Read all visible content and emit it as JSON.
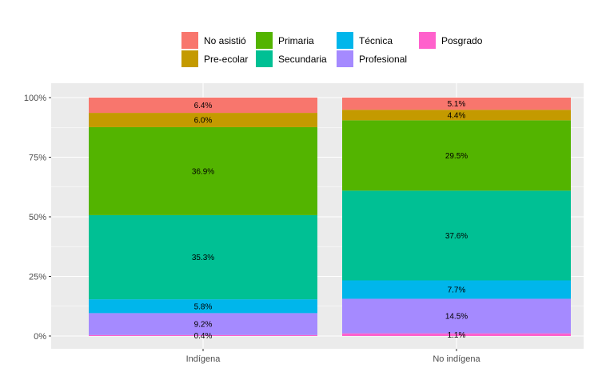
{
  "chart_data": {
    "type": "bar",
    "stacked": true,
    "percent": true,
    "categories": [
      "Indígena",
      "No indígena"
    ],
    "yticks": [
      "0%",
      "25%",
      "50%",
      "75%",
      "100%"
    ],
    "ylim": [
      0,
      100
    ],
    "grid": true,
    "legend_position": "top",
    "series": [
      {
        "name": "Posgrado",
        "color": "#FF61CC",
        "values": [
          0.4,
          1.1
        ],
        "labels": [
          "0.4%",
          "1.1%"
        ]
      },
      {
        "name": "Profesional",
        "color": "#A58AFF",
        "values": [
          9.2,
          14.5
        ],
        "labels": [
          "9.2%",
          "14.5%"
        ]
      },
      {
        "name": "Técnica",
        "color": "#00B6EB",
        "values": [
          5.8,
          7.7
        ],
        "labels": [
          "5.8%",
          "7.7%"
        ]
      },
      {
        "name": "Secundaria",
        "color": "#00C094",
        "values": [
          35.3,
          37.6
        ],
        "labels": [
          "35.3%",
          "37.6%"
        ]
      },
      {
        "name": "Primaria",
        "color": "#53B400",
        "values": [
          36.9,
          29.5
        ],
        "labels": [
          "36.9%",
          "29.5%"
        ]
      },
      {
        "name": "Pre-ecolar",
        "color": "#C49A00",
        "values": [
          6.0,
          4.4
        ],
        "labels": [
          "6.0%",
          "4.4%"
        ]
      },
      {
        "name": "No asistió",
        "color": "#F8766D",
        "values": [
          6.4,
          5.1
        ],
        "labels": [
          "6.4%",
          "5.1%"
        ]
      }
    ],
    "legend_order": [
      "No asistió",
      "Pre-ecolar",
      "Primaria",
      "Secundaria",
      "Técnica",
      "Profesional",
      "Posgrado"
    ]
  }
}
